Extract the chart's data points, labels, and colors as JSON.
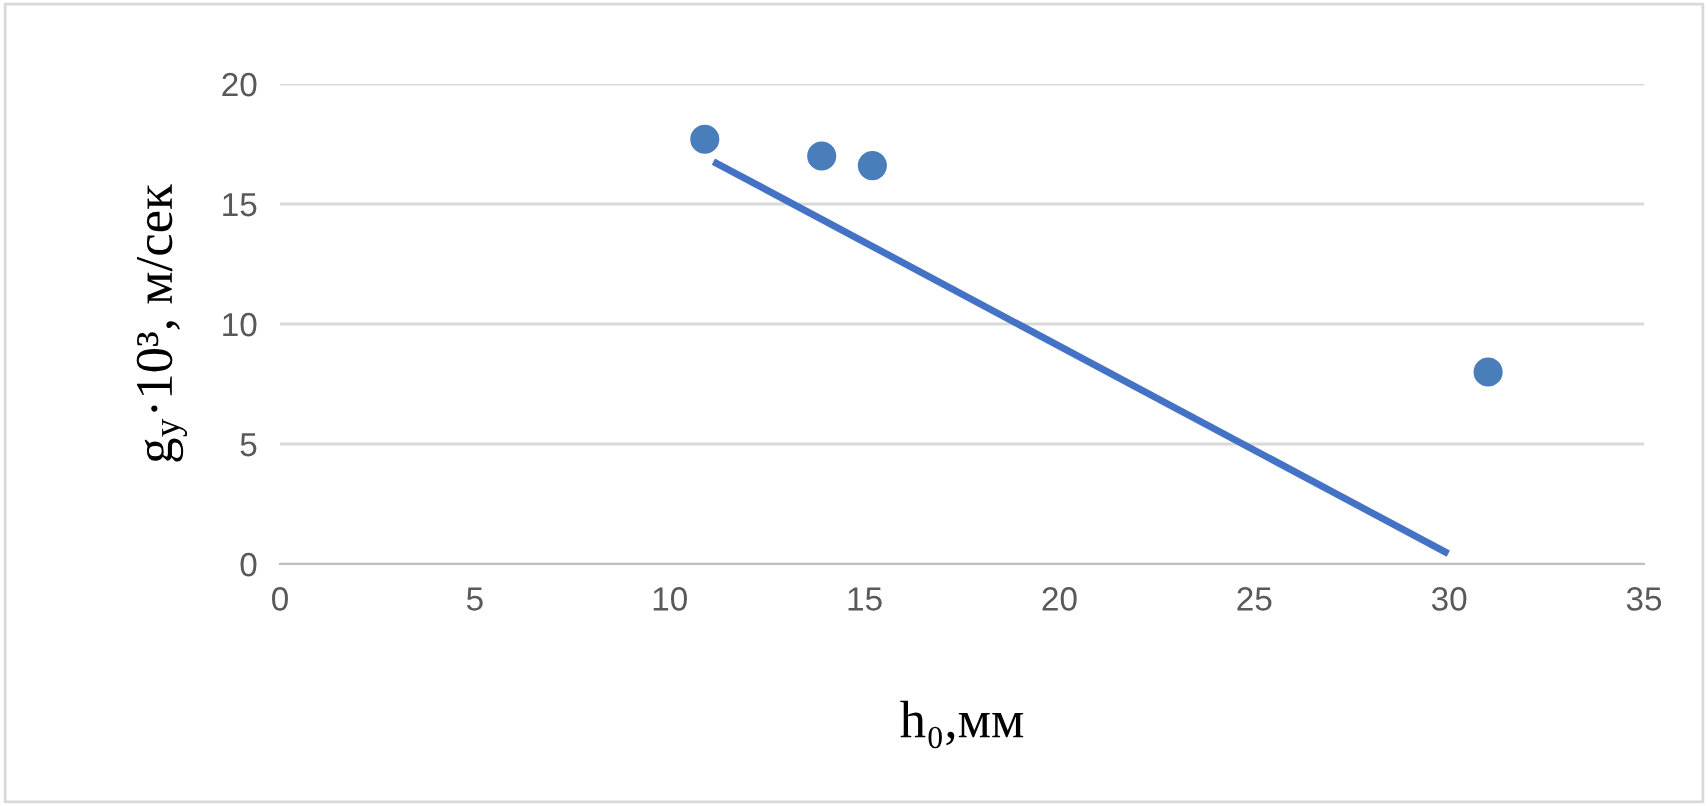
{
  "chart_data": {
    "type": "scatter",
    "xlabel": "h₀,мм",
    "ylabel": "g$_{у}$·10³, м/сек",
    "series": [
      {
        "x": [
          10.9,
          13.9,
          15.2,
          31.0
        ],
        "values": [
          17.7,
          17.0,
          16.6,
          8.0
        ],
        "color": "#4a7ebb",
        "marker": "circle"
      },
      {
        "type": "line",
        "x": [
          11.2,
          29.9
        ],
        "values": [
          16.7,
          0.5
        ],
        "color": "#4472c4",
        "marker": "none"
      }
    ],
    "xlim": [
      0,
      35
    ],
    "xticks": [
      0,
      5,
      10,
      15,
      20,
      25,
      30,
      35
    ],
    "ylim": [
      0,
      20
    ],
    "yticks": [
      0,
      5,
      10,
      15,
      20
    ],
    "grid": "y"
  }
}
